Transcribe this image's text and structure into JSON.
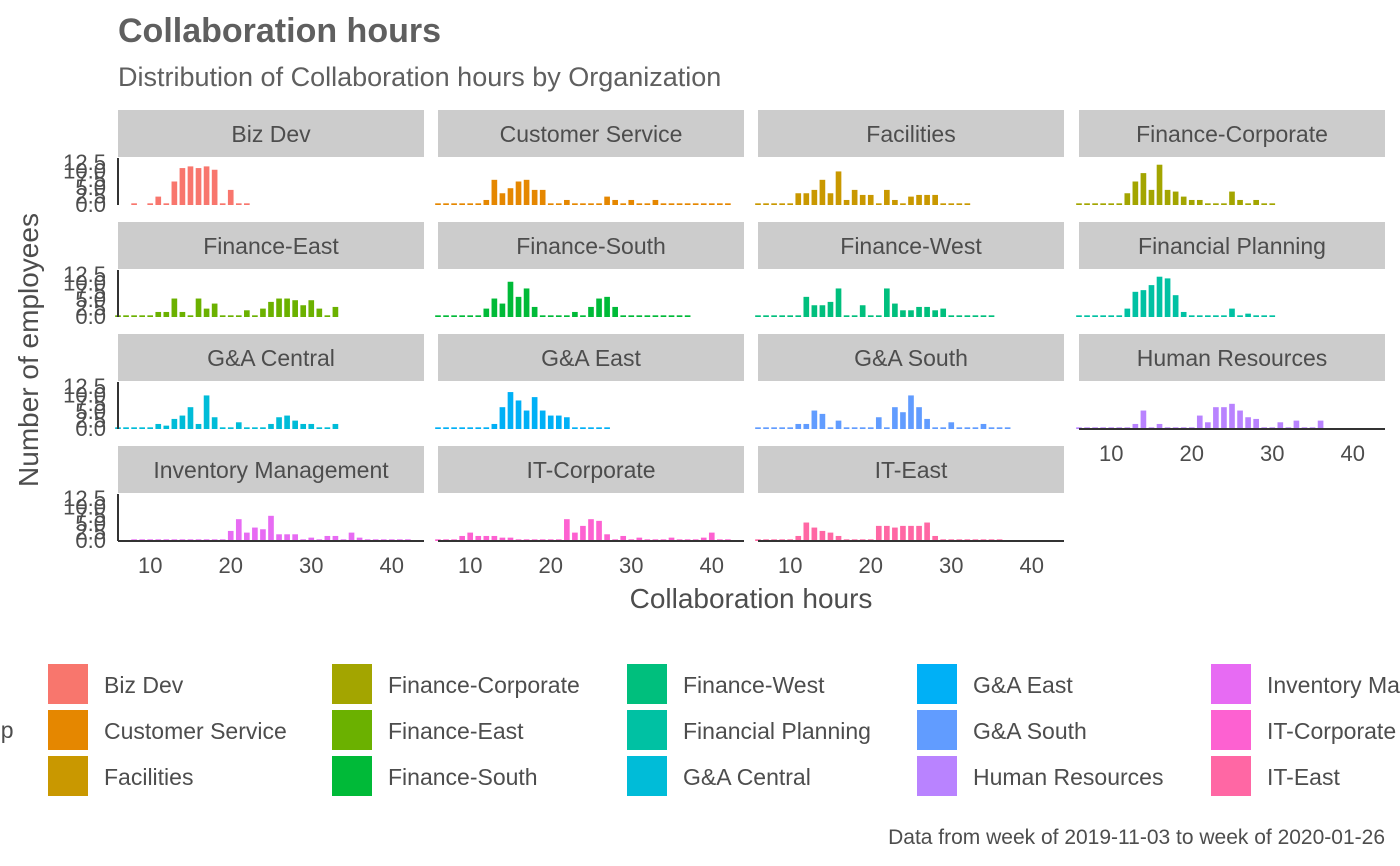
{
  "chart_data": {
    "type": "bar",
    "title": "Collaboration hours",
    "subtitle": "Distribution of Collaboration hours by Organization",
    "xlabel": "Collaboration hours",
    "ylabel": "Number of employees",
    "caption": "Data from week of 2019-11-03 to week of 2020-01-26",
    "xlim": [
      6,
      44
    ],
    "ylim": [
      0,
      14
    ],
    "x_ticks": [
      10,
      20,
      30,
      40
    ],
    "y_ticks": [
      0.0,
      2.5,
      5.0,
      7.5,
      10.0,
      12.5
    ],
    "grid": false,
    "legend": {
      "position": "bottom",
      "title": "Group",
      "title_visible": "up",
      "note": "legend is clipped at left and right edges"
    },
    "facets": [
      {
        "name": "Biz Dev",
        "color": "#F8766D",
        "x": [
          8,
          10,
          11,
          12,
          13,
          14,
          15,
          16,
          17,
          18,
          19,
          20,
          21,
          22
        ],
        "values": [
          0.5,
          0.5,
          2.5,
          0.5,
          7,
          11,
          11.5,
          11,
          11.5,
          10.5,
          0.5,
          4.5,
          0.5,
          0.5
        ]
      },
      {
        "name": "Customer Service",
        "color": "#E58700",
        "x": [
          6,
          7,
          8,
          9,
          10,
          11,
          12,
          13,
          14,
          15,
          16,
          17,
          18,
          19,
          20,
          21,
          22,
          23,
          24,
          25,
          26,
          27,
          28,
          29,
          30,
          31,
          32,
          33,
          34,
          35,
          36,
          37,
          38,
          39,
          40,
          41,
          42
        ],
        "values": [
          0.5,
          0.5,
          0.5,
          0.5,
          0.5,
          0.5,
          1.5,
          7.5,
          3.5,
          5,
          7,
          7.5,
          4.5,
          4.5,
          0.5,
          0.5,
          1.5,
          0.5,
          0.5,
          0.5,
          0.5,
          2.5,
          1.5,
          0.5,
          1.5,
          0.5,
          0.5,
          1.5,
          0.5,
          0.5,
          0.5,
          0.5,
          0.5,
          0.5,
          0.5,
          0.5,
          0.5
        ]
      },
      {
        "name": "Facilities",
        "color": "#C99800",
        "x": [
          6,
          7,
          8,
          9,
          10,
          11,
          12,
          13,
          14,
          15,
          16,
          17,
          18,
          19,
          20,
          21,
          22,
          23,
          24,
          25,
          26,
          27,
          28,
          29,
          30,
          31,
          32
        ],
        "values": [
          0.5,
          0.5,
          0.5,
          0.5,
          0.5,
          3.5,
          3.5,
          4.5,
          7.5,
          3.5,
          10,
          1.5,
          4.5,
          3,
          3,
          0.5,
          4.5,
          1.5,
          0.5,
          2.5,
          3,
          3,
          3,
          0.5,
          0.5,
          0.5,
          0.5
        ]
      },
      {
        "name": "Finance-Corporate",
        "color": "#A3A500",
        "x": [
          6,
          7,
          8,
          9,
          10,
          11,
          12,
          13,
          14,
          15,
          16,
          17,
          18,
          19,
          20,
          21,
          22,
          23,
          24,
          25,
          26,
          27,
          28,
          29,
          30
        ],
        "values": [
          0.5,
          0.5,
          0.5,
          0.5,
          0.5,
          0.5,
          3.5,
          7,
          9.5,
          4.5,
          12,
          4.5,
          4,
          2.5,
          1.5,
          1.5,
          0.5,
          0.5,
          0.5,
          4,
          1.5,
          0.5,
          1.5,
          0.5,
          0.5
        ]
      },
      {
        "name": "Finance-East",
        "color": "#6BB100",
        "x": [
          6,
          7,
          8,
          9,
          10,
          11,
          12,
          13,
          14,
          15,
          16,
          17,
          18,
          19,
          20,
          21,
          22,
          23,
          24,
          25,
          26,
          27,
          28,
          29,
          30,
          31,
          32,
          33
        ],
        "values": [
          0.5,
          0.5,
          0.5,
          0.5,
          0.5,
          1.5,
          1.5,
          5.5,
          1.5,
          0.5,
          5.5,
          2.5,
          4,
          0.5,
          0.5,
          0.5,
          2,
          0.5,
          2.5,
          4.5,
          5.5,
          5.5,
          5,
          3.5,
          5,
          2.5,
          0.5,
          3
        ]
      },
      {
        "name": "Finance-South",
        "color": "#00BA38",
        "x": [
          6,
          7,
          8,
          9,
          10,
          11,
          12,
          13,
          14,
          15,
          16,
          17,
          18,
          19,
          20,
          21,
          22,
          23,
          24,
          25,
          26,
          27,
          28,
          29,
          30,
          31,
          32,
          33,
          34,
          35,
          36,
          37
        ],
        "values": [
          0.5,
          0.5,
          0.5,
          0.5,
          0.5,
          0.5,
          2.5,
          5.5,
          4,
          10.5,
          6,
          8.5,
          3,
          0.5,
          0.5,
          0.5,
          0.5,
          1.5,
          0.5,
          3,
          5.5,
          6,
          3,
          0.5,
          0.5,
          0.5,
          0.5,
          0.5,
          0.5,
          0.5,
          0.5,
          0.5
        ]
      },
      {
        "name": "Finance-West",
        "color": "#00BF7D",
        "x": [
          6,
          7,
          8,
          9,
          10,
          11,
          12,
          13,
          14,
          15,
          16,
          17,
          18,
          19,
          20,
          21,
          22,
          23,
          24,
          25,
          26,
          27,
          28,
          29,
          30,
          31,
          32,
          33,
          34,
          35
        ],
        "values": [
          0.5,
          0.5,
          0.5,
          0.5,
          0.5,
          0.5,
          6,
          3.5,
          3.5,
          4.5,
          8.5,
          0.5,
          0.5,
          3.5,
          0.5,
          0.5,
          8.5,
          4,
          2,
          2,
          3,
          3,
          2,
          2.5,
          0.5,
          0.5,
          0.5,
          0.5,
          0.5,
          0.5
        ]
      },
      {
        "name": "Financial Planning",
        "color": "#00C1A3",
        "x": [
          6,
          7,
          8,
          9,
          10,
          11,
          12,
          13,
          14,
          15,
          16,
          17,
          18,
          19,
          20,
          21,
          22,
          23,
          24,
          25,
          26,
          27,
          28,
          29,
          30
        ],
        "values": [
          0.5,
          0.5,
          0.5,
          0.5,
          0.5,
          0.5,
          2.5,
          7.5,
          8,
          9.5,
          12,
          11.5,
          6.5,
          1.5,
          0.5,
          0.5,
          0.5,
          0.5,
          0.5,
          2.5,
          0.5,
          1,
          0.5,
          0.5,
          0.5
        ]
      },
      {
        "name": "G&A Central",
        "color": "#00BCD8",
        "x": [
          6,
          7,
          8,
          9,
          10,
          11,
          12,
          13,
          14,
          15,
          16,
          17,
          18,
          19,
          20,
          21,
          22,
          23,
          24,
          25,
          26,
          27,
          28,
          29,
          30,
          31,
          32,
          33
        ],
        "values": [
          0.5,
          0.5,
          0.5,
          0.5,
          0.5,
          1.5,
          1,
          3,
          4,
          6.5,
          1.5,
          10,
          3.5,
          0.5,
          0.5,
          2,
          0.5,
          0.5,
          0.5,
          1.5,
          3.5,
          4,
          2.5,
          1.5,
          1.5,
          0.5,
          0.5,
          1.5
        ]
      },
      {
        "name": "G&A East",
        "color": "#00B0F6",
        "x": [
          6,
          7,
          8,
          9,
          10,
          11,
          12,
          13,
          14,
          15,
          16,
          17,
          18,
          19,
          20,
          21,
          22,
          23,
          24,
          25,
          26,
          27
        ],
        "values": [
          0.5,
          0.5,
          0.5,
          0.5,
          0.5,
          0.5,
          0.5,
          1.5,
          6.5,
          11,
          8.5,
          5.5,
          9.5,
          5.5,
          4,
          4,
          3.5,
          0.5,
          0.5,
          0.5,
          0.5,
          0.5
        ]
      },
      {
        "name": "G&A South",
        "color": "#619CFF",
        "x": [
          6,
          7,
          8,
          9,
          10,
          11,
          12,
          13,
          14,
          15,
          16,
          17,
          18,
          19,
          20,
          21,
          22,
          23,
          24,
          25,
          26,
          27,
          28,
          29,
          30,
          31,
          32,
          33,
          34,
          35,
          36,
          37
        ],
        "values": [
          0.5,
          0.5,
          0.5,
          0.5,
          0.5,
          1.5,
          1.5,
          5.5,
          4.5,
          0.5,
          2.5,
          0.5,
          0.5,
          0.5,
          0.5,
          3.5,
          0.5,
          6.5,
          5,
          10,
          6.5,
          3,
          0.5,
          0.5,
          2,
          0.5,
          0.5,
          0.5,
          1.5,
          0.5,
          0.5,
          0.5
        ]
      },
      {
        "name": "Human Resources",
        "color": "#B983FF",
        "x": [
          6,
          7,
          8,
          9,
          10,
          11,
          12,
          13,
          14,
          15,
          16,
          17,
          18,
          19,
          20,
          21,
          22,
          23,
          24,
          25,
          26,
          27,
          28,
          29,
          30,
          31,
          32,
          33,
          34,
          35,
          36
        ],
        "values": [
          0.5,
          0.5,
          0.5,
          0.5,
          0.5,
          0.5,
          0.5,
          1.5,
          5.5,
          0.5,
          1.5,
          0.5,
          0.5,
          0.5,
          0.5,
          4,
          2,
          6.5,
          6.5,
          7.5,
          5.5,
          3.5,
          3,
          0.5,
          0.5,
          2,
          0.5,
          2.5,
          0.5,
          0.5,
          2.5
        ]
      },
      {
        "name": "Inventory Management",
        "color": "#E76BF3",
        "x": [
          8,
          9,
          10,
          11,
          12,
          13,
          14,
          15,
          16,
          17,
          18,
          19,
          20,
          21,
          22,
          23,
          24,
          25,
          26,
          27,
          28,
          29,
          30,
          31,
          32,
          33,
          34,
          35,
          36,
          37,
          38,
          39,
          40,
          41,
          42
        ],
        "values": [
          0.5,
          0.5,
          0.5,
          0.5,
          0.5,
          0.5,
          0.5,
          0.5,
          0.5,
          0.5,
          0.5,
          0.5,
          3,
          6.5,
          2.5,
          4,
          3.5,
          7.5,
          2,
          2,
          2,
          0.5,
          1,
          0.5,
          1.5,
          1.5,
          0.5,
          2.5,
          1,
          0.5,
          0.5,
          0.5,
          0.5,
          0.5,
          0.5
        ]
      },
      {
        "name": "IT-Corporate",
        "color": "#FD61D1",
        "x": [
          6,
          7,
          8,
          9,
          10,
          11,
          12,
          13,
          14,
          15,
          16,
          17,
          18,
          19,
          20,
          21,
          22,
          23,
          24,
          25,
          26,
          27,
          28,
          29,
          30,
          31,
          32,
          33,
          34,
          35,
          36,
          37,
          38,
          39,
          40,
          41,
          42
        ],
        "values": [
          0.5,
          0.5,
          0.5,
          1.5,
          2.5,
          1.5,
          1.5,
          1.5,
          1,
          1,
          0.5,
          0.5,
          0.5,
          0.5,
          0.5,
          0.5,
          6.5,
          2.5,
          4.5,
          6.5,
          6,
          2,
          0.5,
          1.5,
          0.5,
          1,
          0.5,
          0.5,
          0.5,
          1,
          0.5,
          0.5,
          0.5,
          1,
          2.5,
          0.5,
          0.5
        ]
      },
      {
        "name": "IT-East",
        "color": "#FF67A4",
        "x": [
          6,
          7,
          8,
          9,
          10,
          11,
          12,
          13,
          14,
          15,
          16,
          17,
          18,
          19,
          20,
          21,
          22,
          23,
          24,
          25,
          26,
          27,
          28,
          29,
          30,
          31,
          32,
          33,
          34,
          35,
          36
        ],
        "values": [
          0.5,
          0.5,
          0.5,
          0.5,
          0.5,
          1.5,
          5.5,
          4,
          3,
          2.5,
          1.5,
          0.5,
          0.5,
          0.5,
          0.5,
          4.5,
          4.5,
          4,
          4.5,
          4.5,
          4.5,
          5.5,
          1.5,
          0.5,
          0.5,
          0.5,
          0.5,
          0.5,
          0.5,
          0.5,
          0.5
        ]
      }
    ]
  }
}
